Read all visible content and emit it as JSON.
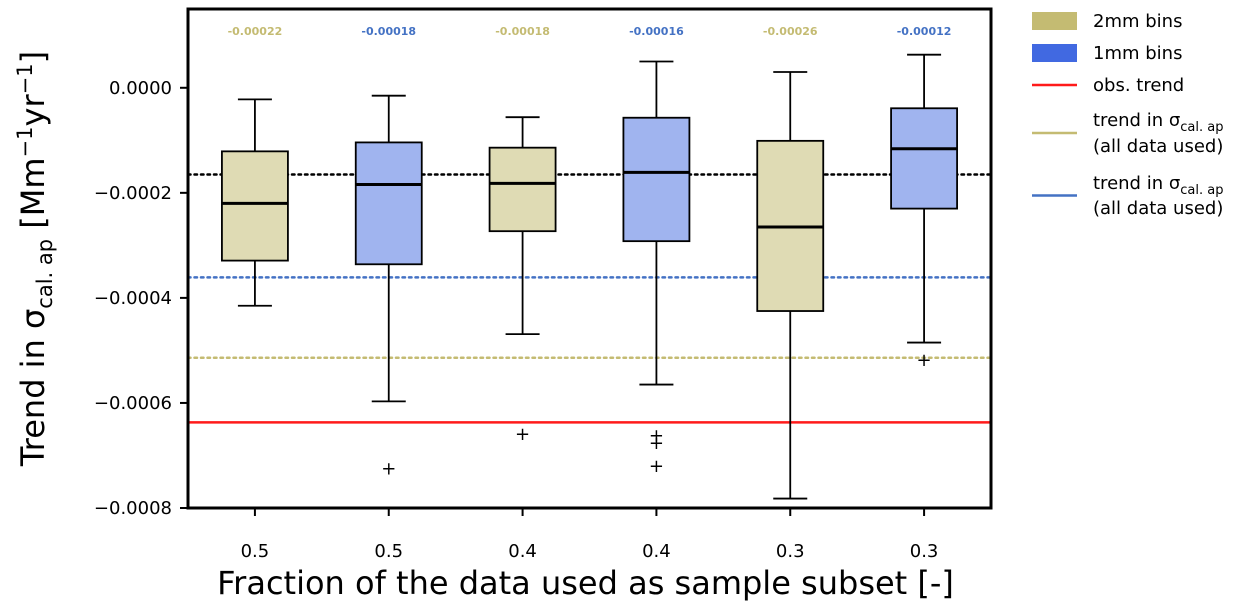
{
  "chart_data": {
    "type": "box",
    "ylabel_prefix": "Trend in σ",
    "ylabel_sub": "cal. ap",
    "ylabel_units_open": "[Mm",
    "ylabel_exp1": "−1",
    "ylabel_units_mid": "yr",
    "ylabel_exp2": "−1",
    "ylabel_units_close": "]",
    "xlabel": "Fraction of the data used as sample subset [-]",
    "ylim": [
      -0.0008,
      0.00015
    ],
    "yticks": [
      0.0,
      -0.0002,
      -0.0004,
      -0.0006,
      -0.0008
    ],
    "ytick_labels": [
      "0.0000",
      "−0.0002",
      "−0.0004",
      "−0.0006",
      "−0.0008"
    ],
    "grid": false,
    "legend_position": "outside-right",
    "categories": [
      "0.5",
      "0.5",
      "0.4",
      "0.4",
      "0.3",
      "0.3"
    ],
    "boxes": [
      {
        "group": "2mm",
        "whisker_low": -0.000415,
        "q1": -0.000329,
        "median": -0.00022,
        "q3": -0.000121,
        "whisker_high": -2.2e-05,
        "outliers": [],
        "median_label": "-0.00022"
      },
      {
        "group": "1mm",
        "whisker_low": -0.000597,
        "q1": -0.000336,
        "median": -0.000184,
        "q3": -0.000104,
        "whisker_high": -1.5e-05,
        "outliers": [
          -0.000725
        ],
        "median_label": "-0.00018"
      },
      {
        "group": "2mm",
        "whisker_low": -0.000469,
        "q1": -0.000273,
        "median": -0.000182,
        "q3": -0.000114,
        "whisker_high": -5.6e-05,
        "outliers": [
          -0.000659
        ],
        "median_label": "-0.00018"
      },
      {
        "group": "1mm",
        "whisker_low": -0.000565,
        "q1": -0.000292,
        "median": -0.000161,
        "q3": -5.7e-05,
        "whisker_high": 5e-05,
        "outliers": [
          -0.000662,
          -0.000676,
          -0.00072
        ],
        "median_label": "-0.00016"
      },
      {
        "group": "2mm",
        "whisker_low": -0.000782,
        "q1": -0.000425,
        "median": -0.000265,
        "q3": -0.000101,
        "whisker_high": 3e-05,
        "outliers": [],
        "median_label": "-0.00026"
      },
      {
        "group": "1mm",
        "whisker_low": -0.000485,
        "q1": -0.00023,
        "median": -0.000116,
        "q3": -3.9e-05,
        "whisker_high": 6.3e-05,
        "outliers": [
          -0.000518
        ],
        "median_label": "-0.00012"
      }
    ],
    "reference_lines": [
      {
        "name": "obs. trend",
        "value": -0.000637,
        "style": "solid",
        "color": "#ff1a1a"
      },
      {
        "name": "trend in σcal. ap (all data used) 2mm",
        "value": -0.000514,
        "style": "dotted",
        "color": "#c4bb72"
      },
      {
        "name": "trend in σcal. ap (all data used) 1mm",
        "value": -0.000361,
        "style": "dotted",
        "color": "#4472c4"
      },
      {
        "name": "black reference",
        "value": -0.000165,
        "style": "dotted",
        "color": "#000000"
      }
    ],
    "colors": {
      "2mm_fill": "#dfdbb4",
      "1mm_fill": "#a0b4ef",
      "2mm_label": "#c4bb72",
      "1mm_label": "#4472c4",
      "legend_2mm": "#c4bb72",
      "legend_1mm": "#4169e1",
      "obs": "#ff1a1a"
    },
    "legend": [
      {
        "key": "2mm",
        "kind": "patch",
        "color": "#c4bb72",
        "lines": [
          "2mm bins"
        ]
      },
      {
        "key": "1mm",
        "kind": "patch",
        "color": "#4169e1",
        "lines": [
          "1mm bins"
        ]
      },
      {
        "key": "obs",
        "kind": "line",
        "color": "#ff1a1a",
        "lines": [
          "obs. trend"
        ]
      },
      {
        "key": "all2",
        "kind": "line",
        "color": "#c4bb72",
        "lines": [
          "trend in σ|cal. ap",
          "(all data used)"
        ]
      },
      {
        "key": "all1",
        "kind": "line",
        "color": "#4472c4",
        "lines": [
          "trend in σ|cal. ap",
          "(all data used)"
        ]
      }
    ]
  }
}
